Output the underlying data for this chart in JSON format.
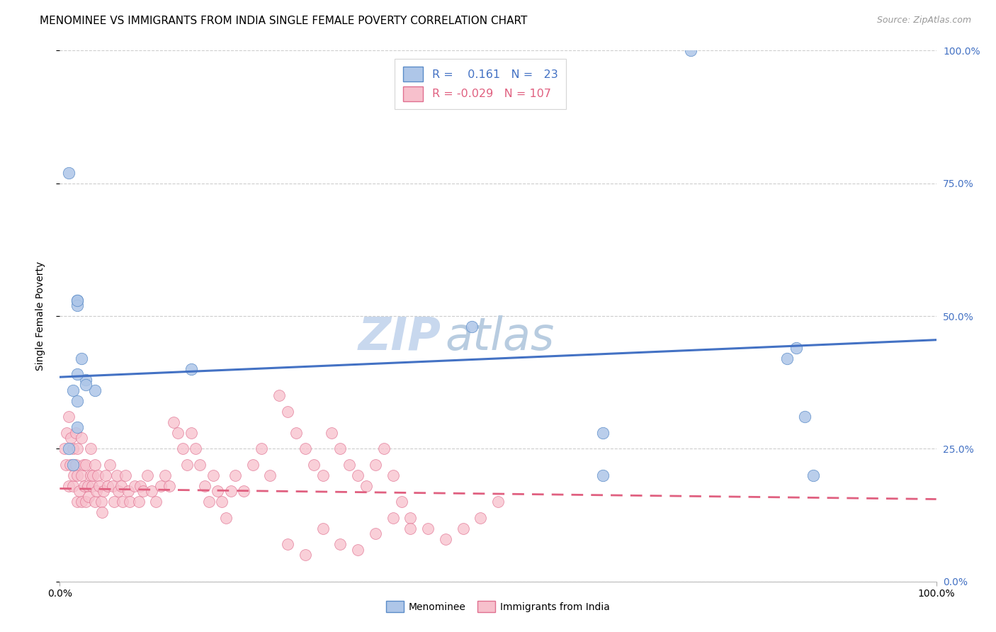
{
  "title": "MENOMINEE VS IMMIGRANTS FROM INDIA SINGLE FEMALE POVERTY CORRELATION CHART",
  "source": "Source: ZipAtlas.com",
  "ylabel": "Single Female Poverty",
  "watermark_zip": "ZIP",
  "watermark_atlas": "atlas",
  "xlim": [
    0,
    1.0
  ],
  "ylim": [
    0,
    1.0
  ],
  "xtick_positions": [
    0.0,
    1.0
  ],
  "xtick_labels": [
    "0.0%",
    "100.0%"
  ],
  "ytick_positions": [
    0.0,
    0.25,
    0.5,
    0.75,
    1.0
  ],
  "ytick_labels": [
    "0.0%",
    "25.0%",
    "50.0%",
    "75.0%",
    "100.0%"
  ],
  "grid_color": "#c8c8c8",
  "bg_color": "#ffffff",
  "menominee": {
    "name": "Menominee",
    "R": 0.161,
    "N": 23,
    "face_color": "#aec6e8",
    "edge_color": "#5b8cc8",
    "line_color": "#4472c4",
    "x": [
      0.02,
      0.02,
      0.03,
      0.04,
      0.01,
      0.02,
      0.03,
      0.02,
      0.015,
      0.02,
      0.025,
      0.01,
      0.015,
      0.02,
      0.62,
      0.72,
      0.83,
      0.84,
      0.85,
      0.86,
      0.62,
      0.15,
      0.47
    ],
    "y": [
      0.53,
      0.52,
      0.38,
      0.36,
      0.77,
      0.53,
      0.37,
      0.29,
      0.36,
      0.39,
      0.42,
      0.25,
      0.22,
      0.34,
      0.2,
      1.0,
      0.42,
      0.44,
      0.31,
      0.2,
      0.28,
      0.4,
      0.48
    ],
    "trend_x": [
      0.0,
      1.0
    ],
    "trend_y": [
      0.385,
      0.455
    ]
  },
  "india": {
    "name": "Immigrants from India",
    "R": -0.029,
    "N": 107,
    "face_color": "#f7c0cc",
    "edge_color": "#e07090",
    "line_color": "#e06080",
    "x": [
      0.005,
      0.007,
      0.008,
      0.01,
      0.01,
      0.012,
      0.013,
      0.015,
      0.015,
      0.016,
      0.018,
      0.018,
      0.02,
      0.02,
      0.02,
      0.022,
      0.025,
      0.025,
      0.025,
      0.027,
      0.028,
      0.03,
      0.03,
      0.032,
      0.033,
      0.035,
      0.035,
      0.037,
      0.038,
      0.04,
      0.04,
      0.042,
      0.043,
      0.045,
      0.047,
      0.048,
      0.05,
      0.052,
      0.055,
      0.057,
      0.06,
      0.062,
      0.065,
      0.067,
      0.07,
      0.072,
      0.075,
      0.078,
      0.08,
      0.085,
      0.09,
      0.092,
      0.095,
      0.1,
      0.105,
      0.11,
      0.115,
      0.12,
      0.125,
      0.13,
      0.135,
      0.14,
      0.145,
      0.15,
      0.155,
      0.16,
      0.165,
      0.17,
      0.175,
      0.18,
      0.185,
      0.19,
      0.195,
      0.2,
      0.21,
      0.22,
      0.23,
      0.24,
      0.25,
      0.26,
      0.27,
      0.28,
      0.29,
      0.3,
      0.31,
      0.32,
      0.33,
      0.34,
      0.35,
      0.36,
      0.37,
      0.38,
      0.39,
      0.4,
      0.42,
      0.44,
      0.46,
      0.48,
      0.5,
      0.26,
      0.28,
      0.3,
      0.32,
      0.34,
      0.36,
      0.38,
      0.4
    ],
    "y": [
      0.25,
      0.22,
      0.28,
      0.31,
      0.18,
      0.22,
      0.27,
      0.25,
      0.18,
      0.2,
      0.22,
      0.28,
      0.2,
      0.25,
      0.15,
      0.17,
      0.2,
      0.27,
      0.15,
      0.22,
      0.18,
      0.15,
      0.22,
      0.18,
      0.16,
      0.2,
      0.25,
      0.18,
      0.2,
      0.15,
      0.22,
      0.17,
      0.2,
      0.18,
      0.15,
      0.13,
      0.17,
      0.2,
      0.18,
      0.22,
      0.18,
      0.15,
      0.2,
      0.17,
      0.18,
      0.15,
      0.2,
      0.17,
      0.15,
      0.18,
      0.15,
      0.18,
      0.17,
      0.2,
      0.17,
      0.15,
      0.18,
      0.2,
      0.18,
      0.3,
      0.28,
      0.25,
      0.22,
      0.28,
      0.25,
      0.22,
      0.18,
      0.15,
      0.2,
      0.17,
      0.15,
      0.12,
      0.17,
      0.2,
      0.17,
      0.22,
      0.25,
      0.2,
      0.35,
      0.32,
      0.28,
      0.25,
      0.22,
      0.2,
      0.28,
      0.25,
      0.22,
      0.2,
      0.18,
      0.22,
      0.25,
      0.2,
      0.15,
      0.12,
      0.1,
      0.08,
      0.1,
      0.12,
      0.15,
      0.07,
      0.05,
      0.1,
      0.07,
      0.06,
      0.09,
      0.12,
      0.1
    ]
  },
  "title_fontsize": 11,
  "source_fontsize": 9,
  "label_fontsize": 10,
  "tick_fontsize": 10,
  "watermark_fontsize_zip": 46,
  "watermark_fontsize_atlas": 46,
  "watermark_color_zip": "#c8d8ee",
  "watermark_color_atlas": "#c8d8ee"
}
